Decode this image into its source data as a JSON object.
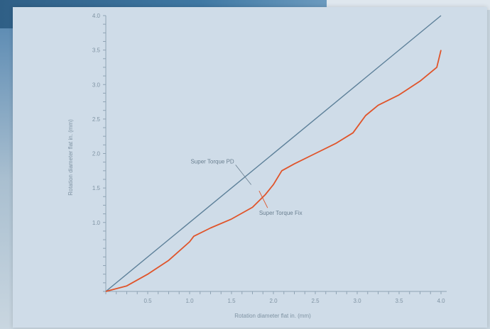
{
  "chart_data": {
    "type": "line",
    "xlabel": "Rotation diameter flat in. (mm)",
    "ylabel": "Rotation diameter flat in. (mm)",
    "xlim": [
      0,
      4.0
    ],
    "ylim": [
      0,
      4.0
    ],
    "x_ticks": [
      "0.5",
      "1.0",
      "1.5",
      "2.0",
      "2.5",
      "3.0",
      "3.5",
      "4.0"
    ],
    "y_ticks": [
      "1.0",
      "1.5",
      "2.0",
      "2.5",
      "3.0",
      "3.5",
      "4.0"
    ],
    "grid": false,
    "series": [
      {
        "name": "Super Torque PD",
        "color": "#5d8099",
        "x": [
          0,
          4.0
        ],
        "y": [
          0,
          4.0
        ]
      },
      {
        "name": "Super Torque Fix",
        "color": "#e0542a",
        "x": [
          0,
          0.25,
          0.5,
          0.75,
          1.0,
          1.05,
          1.25,
          1.5,
          1.75,
          1.9,
          2.0,
          2.1,
          2.25,
          2.5,
          2.75,
          2.95,
          3.1,
          3.25,
          3.5,
          3.75,
          3.95,
          4.0
        ],
        "y": [
          0,
          0.08,
          0.25,
          0.45,
          0.72,
          0.8,
          0.92,
          1.05,
          1.22,
          1.4,
          1.55,
          1.75,
          1.85,
          2.0,
          2.15,
          2.3,
          2.55,
          2.7,
          2.85,
          3.05,
          3.25,
          3.5
        ]
      }
    ],
    "annotations": [
      {
        "text": "Super Torque PD",
        "series": 0,
        "at_x": 1.65
      },
      {
        "text": "Super Torque Fix",
        "series": 1,
        "at_x": 1.88
      }
    ]
  }
}
